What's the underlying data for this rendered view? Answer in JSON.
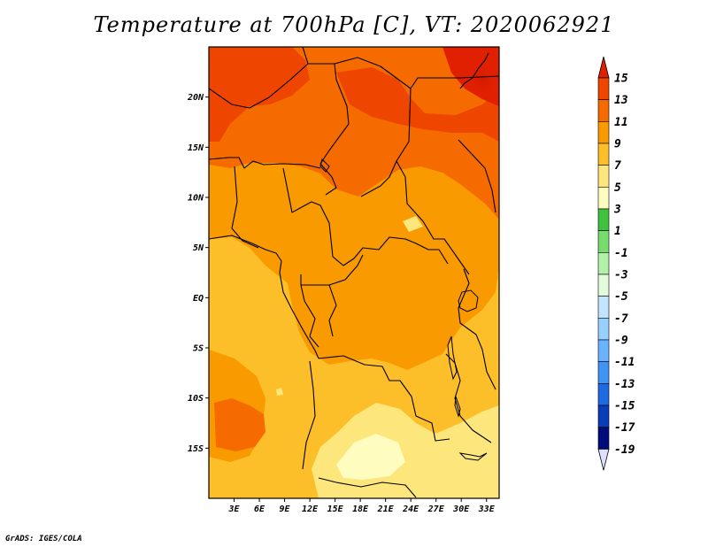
{
  "title": "Temperature at 700hPa [C], VT: 2020062921",
  "footer": "GrADS: IGES/COLA",
  "map": {
    "lon_range": [
      0,
      34.5
    ],
    "lat_range": [
      -20,
      25
    ],
    "lat_ticks": [
      {
        "value": 20,
        "label": "20N"
      },
      {
        "value": 15,
        "label": "15N"
      },
      {
        "value": 10,
        "label": "10N"
      },
      {
        "value": 5,
        "label": "5N"
      },
      {
        "value": 0,
        "label": "EQ"
      },
      {
        "value": -5,
        "label": "5S"
      },
      {
        "value": -10,
        "label": "10S"
      },
      {
        "value": -15,
        "label": "15S"
      }
    ],
    "lon_ticks": [
      {
        "value": 3,
        "label": "3E"
      },
      {
        "value": 6,
        "label": "6E"
      },
      {
        "value": 9,
        "label": "9E"
      },
      {
        "value": 12,
        "label": "12E"
      },
      {
        "value": 15,
        "label": "15E"
      },
      {
        "value": 18,
        "label": "18E"
      },
      {
        "value": 21,
        "label": "21E"
      },
      {
        "value": 24,
        "label": "24E"
      },
      {
        "value": 27,
        "label": "27E"
      },
      {
        "value": 30,
        "label": "30E"
      },
      {
        "value": 33,
        "label": "33E"
      }
    ]
  },
  "colorbar": {
    "labels": [
      "15",
      "13",
      "11",
      "9",
      "7",
      "5",
      "3",
      "1",
      "-1",
      "-3",
      "-5",
      "-7",
      "-9",
      "-11",
      "-13",
      "-15",
      "-17",
      "-19"
    ],
    "colors": [
      "#e02000",
      "#ee4600",
      "#f56b00",
      "#f99a00",
      "#fdbf29",
      "#fde77d",
      "#fffcc0",
      "#3fc23f",
      "#76dc6e",
      "#b3f0a9",
      "#e2fbda",
      "#c2e4ff",
      "#98d0ff",
      "#6bb3ff",
      "#4294f4",
      "#1e6ae0",
      "#0a3db8",
      "#000c7c",
      "#dedeff"
    ]
  }
}
